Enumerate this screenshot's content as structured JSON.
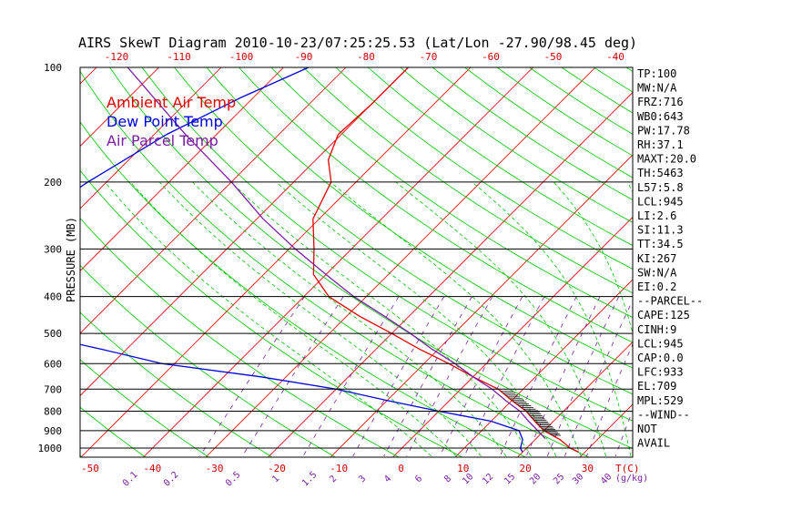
{
  "chart_data": {
    "type": "line",
    "title": "AIRS SkewT Diagram 2010-10-23/07:25:25.53 (Lat/Lon -27.90/98.45 deg)",
    "ylabel": "PRESSURE (MB)",
    "y_scale": "log",
    "ylim": [
      1050,
      100
    ],
    "pressure_ticks": [
      100,
      200,
      300,
      400,
      500,
      600,
      700,
      800,
      900,
      1000
    ],
    "top_temp_ticks": [
      "-120",
      "-110",
      "-100",
      "-90",
      "-80",
      "-70",
      "-60",
      "-50",
      "-40"
    ],
    "bottom_temp_ticks": [
      "-50",
      "-40",
      "-30",
      "-20",
      "-10",
      "0",
      "10",
      "20",
      "30"
    ],
    "bottom_unit": "T(C)",
    "mixing_ratio_labels": [
      "0.1",
      "0.2",
      "0.5",
      "1",
      "1.5",
      "2",
      "3",
      "4",
      "6",
      "8",
      "10",
      "12",
      "15",
      "20",
      "25",
      "30",
      "40"
    ],
    "mixing_unit": "(g/kg)",
    "legend": [
      {
        "name": "Ambient Air Temp",
        "color": "#e00000"
      },
      {
        "name": "Dew Point Temp",
        "color": "#0000e0"
      },
      {
        "name": "Air Parcel Temp",
        "color": "#7a1fa2"
      }
    ],
    "series": [
      {
        "name": "Ambient Air Temp",
        "color": "#e00000",
        "points": [
          [
            100,
            -70
          ],
          [
            125,
            -70
          ],
          [
            150,
            -70.5
          ],
          [
            175,
            -68
          ],
          [
            200,
            -64
          ],
          [
            250,
            -61
          ],
          [
            300,
            -56
          ],
          [
            350,
            -52
          ],
          [
            400,
            -46
          ],
          [
            450,
            -38
          ],
          [
            500,
            -30
          ],
          [
            550,
            -23
          ],
          [
            600,
            -16
          ],
          [
            650,
            -10
          ],
          [
            700,
            -4
          ],
          [
            750,
            0
          ],
          [
            800,
            4
          ],
          [
            850,
            7
          ],
          [
            900,
            10
          ],
          [
            925,
            12
          ],
          [
            950,
            14
          ],
          [
            1000,
            17
          ],
          [
            1025,
            19
          ]
        ]
      },
      {
        "name": "Dew Point Temp",
        "color": "#0000e0",
        "points": [
          [
            100,
            -86
          ],
          [
            120,
            -92
          ],
          [
            150,
            -98
          ],
          [
            200,
            -103
          ],
          [
            250,
            -106
          ],
          [
            300,
            -106
          ],
          [
            350,
            -106
          ],
          [
            400,
            -103
          ],
          [
            450,
            -98
          ],
          [
            500,
            -88
          ],
          [
            550,
            -74
          ],
          [
            600,
            -62
          ],
          [
            650,
            -44
          ],
          [
            700,
            -30
          ],
          [
            750,
            -20
          ],
          [
            800,
            -10
          ],
          [
            850,
            0
          ],
          [
            900,
            6
          ],
          [
            950,
            8
          ],
          [
            1000,
            9
          ],
          [
            1025,
            10
          ]
        ]
      },
      {
        "name": "Air Parcel Temp",
        "color": "#7a1fa2",
        "points": [
          [
            100,
            -115
          ],
          [
            150,
            -95
          ],
          [
            200,
            -80
          ],
          [
            250,
            -69
          ],
          [
            300,
            -59
          ],
          [
            350,
            -50
          ],
          [
            400,
            -42
          ],
          [
            450,
            -34
          ],
          [
            500,
            -27
          ],
          [
            550,
            -21
          ],
          [
            600,
            -15
          ],
          [
            650,
            -10
          ],
          [
            700,
            -5
          ],
          [
            750,
            -1
          ],
          [
            800,
            3
          ],
          [
            850,
            6
          ],
          [
            900,
            9
          ],
          [
            945,
            11.5
          ]
        ]
      }
    ]
  },
  "indices": [
    "TP:100",
    "MW:N/A",
    "FRZ:716",
    "WB0:643",
    "PW:17.78",
    "RH:37.1",
    "MAXT:20.0",
    "TH:5463",
    "L57:5.8",
    "LCL:945",
    "LI:2.6",
    "SI:11.3",
    "TT:34.5",
    "KI:267",
    "SW:N/A",
    "EI:0.2",
    "--PARCEL--",
    "CAPE:125",
    "CINH:9",
    "LCL:945",
    "CAP:0.0",
    "LFC:933",
    "EL:709",
    "MPL:529",
    "--WIND--",
    "NOT",
    "AVAIL"
  ],
  "colors": {
    "isotherm": "#e00000",
    "dry_adiabat": "#00c000",
    "moist_adiabat": "#00c000",
    "mixing_ratio": "#7a1fa2",
    "isobar": "#000000"
  }
}
